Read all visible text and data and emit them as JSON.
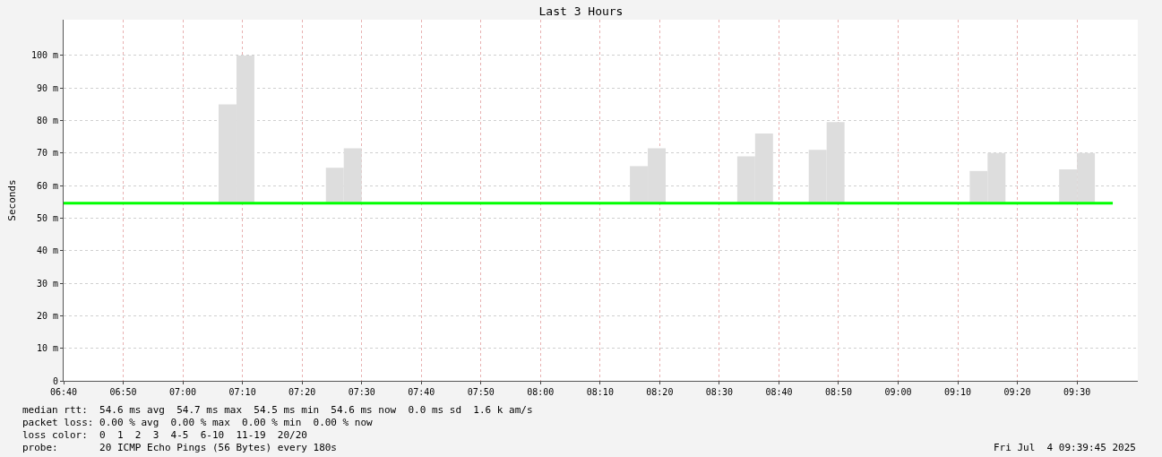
{
  "chart_data": {
    "type": "line",
    "title": "Last 3 Hours",
    "ylabel": "Seconds",
    "series": [
      {
        "color": "#00ff00",
        "x": [
          6.6667,
          7.5,
          8.5,
          9.6
        ],
        "values": [
          54.6,
          54.6,
          54.6,
          54.6
        ]
      },
      {
        "type": "bar",
        "color": "#dddddd",
        "x": [
          7.125,
          7.175,
          7.425,
          7.475,
          8.275,
          8.325,
          8.575,
          8.625,
          8.775,
          8.825,
          9.225,
          9.275,
          9.475,
          9.525
        ],
        "base": [
          54.6,
          54.6,
          54.6,
          54.6,
          54.6,
          54.6,
          54.6,
          54.6,
          54.6,
          54.6,
          54.6,
          54.6,
          54.6,
          54.6
        ],
        "values": [
          30.4,
          45.4,
          10.9,
          16.9,
          11.4,
          16.9,
          14.4,
          21.4,
          16.4,
          24.9,
          9.9,
          15.4,
          10.4,
          15.4
        ]
      }
    ],
    "xlim": [
      6.6667,
      9.67
    ],
    "ylim": [
      0,
      111
    ],
    "xticks": [
      {
        "value": 6.6667,
        "label": "06:40"
      },
      {
        "value": 6.8333,
        "label": "06:50"
      },
      {
        "value": 7,
        "label": "07:00"
      },
      {
        "value": 7.1667,
        "label": "07:10"
      },
      {
        "value": 7.3333,
        "label": "07:20"
      },
      {
        "value": 7.5,
        "label": "07:30"
      },
      {
        "value": 7.6667,
        "label": "07:40"
      },
      {
        "value": 7.8333,
        "label": "07:50"
      },
      {
        "value": 8,
        "label": "08:00"
      },
      {
        "value": 8.1667,
        "label": "08:10"
      },
      {
        "value": 8.3333,
        "label": "08:20"
      },
      {
        "value": 8.5,
        "label": "08:30"
      },
      {
        "value": 8.6667,
        "label": "08:40"
      },
      {
        "value": 8.8333,
        "label": "08:50"
      },
      {
        "value": 9,
        "label": "09:00"
      },
      {
        "value": 9.1667,
        "label": "09:10"
      },
      {
        "value": 9.3333,
        "label": "09:20"
      },
      {
        "value": 9.5,
        "label": "09:30"
      }
    ],
    "yticks": [
      0,
      {
        "value": 10,
        "label": "10 m"
      },
      {
        "value": 20,
        "label": "20 m"
      },
      {
        "value": 30,
        "label": "30 m"
      },
      {
        "value": 40,
        "label": "40 m"
      },
      {
        "value": 50,
        "label": "50 m"
      },
      {
        "value": 60,
        "label": "60 m"
      },
      {
        "value": 70,
        "label": "70 m"
      },
      {
        "value": 80,
        "label": "80 m"
      },
      {
        "value": 90,
        "label": "90 m"
      },
      {
        "value": 100,
        "label": "100 m"
      }
    ],
    "grid": true,
    "annotations": [
      "median rtt:  54.6 ms avg  54.7 ms max  54.5 ms min  54.6 ms now  0.0 ms sd  1.6 k am/s",
      "packet loss: 0.00 % avg  0.00 % max  0.00 % min  0.00 % now",
      "loss color:  0  1  2  3  4-5  6-10  11-19  20/20",
      "probe:       20 ICMP Echo Pings (56 Bytes) every 180s",
      "Fri Jul  4 09:39:45 2025"
    ]
  }
}
